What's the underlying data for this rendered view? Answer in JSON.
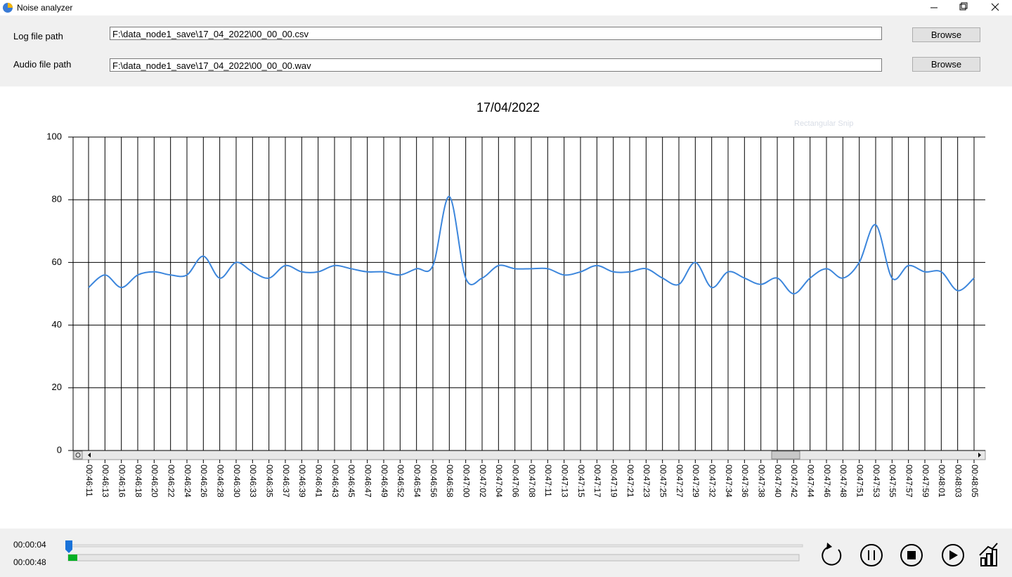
{
  "window": {
    "title": "Noise analyzer"
  },
  "form": {
    "log_label": "Log file path",
    "log_path": "F:\\data_node1_save\\17_04_2022\\00_00_00.csv",
    "audio_label": "Audio file path",
    "audio_path": "F:\\data_node1_save\\17_04_2022\\00_00_00.wav",
    "browse": "Browse"
  },
  "overlay_text": "Rectangular Snip",
  "player": {
    "current_time": "00:00:04",
    "total_time": "00:00:48"
  },
  "chart_data": {
    "type": "line",
    "title": "17/04/2022",
    "color": "#3c86dc",
    "categories": [
      "00:46:11",
      "00:46:13",
      "00:46:16",
      "00:46:18",
      "00:46:20",
      "00:46:22",
      "00:46:24",
      "00:46:26",
      "00:46:28",
      "00:46:30",
      "00:46:33",
      "00:46:35",
      "00:46:37",
      "00:46:39",
      "00:46:41",
      "00:46:43",
      "00:46:45",
      "00:46:47",
      "00:46:49",
      "00:46:52",
      "00:46:54",
      "00:46:56",
      "00:46:58",
      "00:47:00",
      "00:47:02",
      "00:47:04",
      "00:47:06",
      "00:47:08",
      "00:47:11",
      "00:47:13",
      "00:47:15",
      "00:47:17",
      "00:47:19",
      "00:47:21",
      "00:47:23",
      "00:47:25",
      "00:47:27",
      "00:47:29",
      "00:47:32",
      "00:47:34",
      "00:47:36",
      "00:47:38",
      "00:47:40",
      "00:47:42",
      "00:47:44",
      "00:47:46",
      "00:47:48",
      "00:47:51",
      "00:47:53",
      "00:47:55",
      "00:47:57",
      "00:47:59",
      "00:48:01",
      "00:48:03",
      "00:48:05"
    ],
    "values": [
      52,
      56,
      52,
      56,
      57,
      56,
      56,
      62,
      55,
      60,
      57,
      55,
      59,
      57,
      57,
      59,
      58,
      57,
      57,
      56,
      58,
      59,
      81,
      55,
      55,
      59,
      58,
      58,
      58,
      56,
      57,
      59,
      57,
      57,
      58,
      55,
      53,
      60,
      52,
      57,
      55,
      53,
      55,
      50,
      55,
      58,
      55,
      60,
      72,
      55,
      59,
      57,
      57,
      51,
      55
    ],
    "ylim": [
      0,
      100
    ],
    "yticks": [
      0,
      20,
      40,
      60,
      80,
      100
    ],
    "grid": true
  }
}
